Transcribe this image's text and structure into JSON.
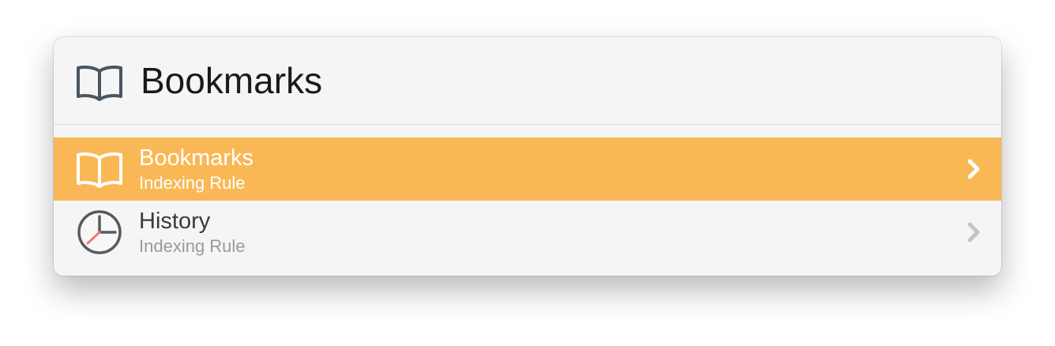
{
  "header": {
    "title": "Bookmarks",
    "icon": "book-icon"
  },
  "rows": [
    {
      "title": "Bookmarks",
      "subtitle": "Indexing Rule",
      "icon": "book-icon",
      "selected": true
    },
    {
      "title": "History",
      "subtitle": "Indexing Rule",
      "icon": "clock-icon",
      "selected": false
    }
  ],
  "colors": {
    "selection": "#f9b855",
    "background": "#f5f5f5"
  }
}
